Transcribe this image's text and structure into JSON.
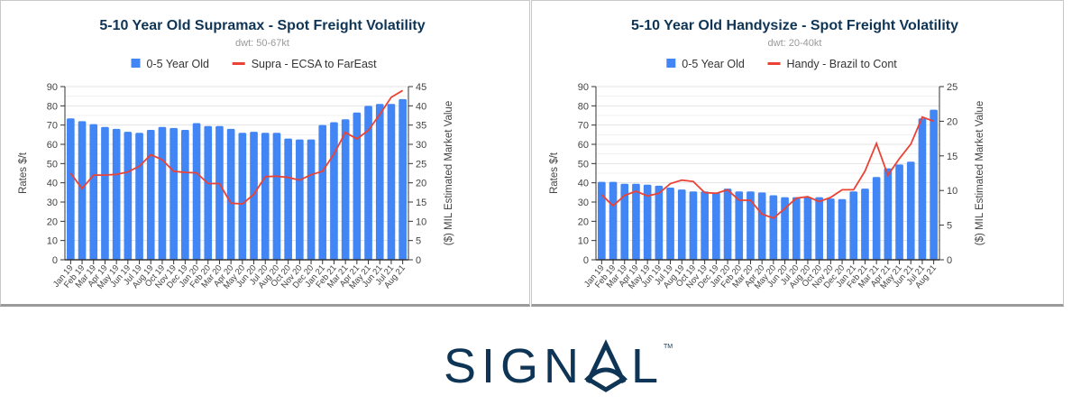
{
  "chart_data": [
    {
      "type": "bar+line",
      "title": "5-10 Year Old Supramax - Spot Freight Volatility",
      "subtitle": "dwt: 50-67kt",
      "ylabel": "Rates $/t",
      "y2label": "($) MIL Estimated Market Value",
      "ylim": [
        0,
        90
      ],
      "y2lim": [
        0,
        45
      ],
      "yticks": [
        0,
        10,
        20,
        30,
        40,
        50,
        60,
        70,
        80,
        90
      ],
      "y2ticks": [
        0,
        5,
        10,
        15,
        20,
        25,
        30,
        35,
        40,
        45
      ],
      "grid": true,
      "legend": "top",
      "categories": [
        "Jan 19",
        "Feb 19",
        "Mar 19",
        "Apr 19",
        "May 19",
        "Jun 19",
        "Jul 19",
        "Aug 19",
        "Oct 19",
        "Nov 19",
        "Dec 19",
        "Jan 20",
        "Feb 20",
        "Mar 20",
        "Apr 20",
        "May 20",
        "Jun 20",
        "Jul 20",
        "Aug 20",
        "Oct 20",
        "Nov 20",
        "Dec 20",
        "Jan 21",
        "Feb 21",
        "Mar 21",
        "Apr 21",
        "May 21",
        "Jun 21",
        "Jul 21",
        "Aug 21"
      ],
      "series": [
        {
          "name": "0-5 Year Old",
          "type": "bar",
          "axis": "left",
          "color": "#4285f4",
          "values": [
            73.5,
            72,
            70.5,
            69,
            68,
            66.5,
            66,
            67.5,
            69,
            68.5,
            67.5,
            71,
            69.5,
            69.5,
            68,
            66,
            66.5,
            66,
            66,
            63,
            62.5,
            62.5,
            70,
            71.5,
            73,
            76.5,
            80,
            81,
            81,
            83.5
          ]
        },
        {
          "name": "Supra - ECSA to FarEast",
          "type": "line",
          "axis": "right",
          "color": "#ea4335",
          "values": [
            22.5,
            18.5,
            22,
            22,
            22.2,
            22.8,
            24.3,
            27.3,
            26,
            23,
            22.7,
            22.6,
            19.8,
            19.8,
            14.7,
            14.5,
            17,
            21.6,
            21.7,
            21.4,
            20.7,
            22.1,
            23,
            27.5,
            33.1,
            31.4,
            33.6,
            37.8,
            42.2,
            44
          ]
        }
      ]
    },
    {
      "type": "bar+line",
      "title": "5-10 Year Old Handysize - Spot Freight Volatility",
      "subtitle": "dwt: 20-40kt",
      "ylabel": "Rates $/t",
      "y2label": "($) MIL Estimated Market Value",
      "ylim": [
        0,
        90
      ],
      "y2lim": [
        0,
        25
      ],
      "yticks": [
        0,
        10,
        20,
        30,
        40,
        50,
        60,
        70,
        80,
        90
      ],
      "y2ticks": [
        0,
        5,
        10,
        15,
        20,
        25
      ],
      "grid": true,
      "legend": "top",
      "categories": [
        "Jan 19",
        "Feb 19",
        "Mar 19",
        "Apr 19",
        "May 19",
        "Jun 19",
        "Jul 19",
        "Aug 19",
        "Oct 19",
        "Nov 19",
        "Dec 19",
        "Jan 20",
        "Feb 20",
        "Mar 20",
        "Apr 20",
        "May 20",
        "Jun 20",
        "Jul 20",
        "Aug 20",
        "Oct 20",
        "Nov 20",
        "Dec 20",
        "Jan 21",
        "Feb 21",
        "Mar 21",
        "Apr 21",
        "May 21",
        "Jun 21",
        "Jul 21",
        "Aug 21"
      ],
      "series": [
        {
          "name": "0-5 Year Old",
          "type": "bar",
          "axis": "left",
          "color": "#4285f4",
          "values": [
            40.5,
            40.5,
            39.5,
            39.5,
            39,
            38.5,
            37.5,
            36.5,
            35.5,
            35.5,
            35,
            37,
            35.5,
            35.5,
            35,
            33.5,
            32.5,
            32.5,
            32.5,
            32.5,
            31.8,
            31.5,
            35.5,
            37,
            43,
            47.5,
            49.5,
            51,
            73.5,
            78
          ]
        },
        {
          "name": "Handy - Brazil to Cont",
          "type": "line",
          "axis": "right",
          "color": "#ea4335",
          "values": [
            9.4,
            7.8,
            9.3,
            9.9,
            9.2,
            9.6,
            11,
            11.5,
            11.3,
            9.7,
            9.6,
            10.1,
            8.6,
            8.6,
            6.6,
            6,
            7.4,
            8.9,
            9.1,
            8.4,
            9,
            10.1,
            10.1,
            12.8,
            16.8,
            12.2,
            14.6,
            16.7,
            20.6,
            20
          ]
        }
      ]
    }
  ],
  "logo": {
    "text": "SIGNAL",
    "trademark": "TM",
    "color": "#0f3556"
  },
  "colors": {
    "title": "#0f3556",
    "subtitle": "#999999"
  }
}
